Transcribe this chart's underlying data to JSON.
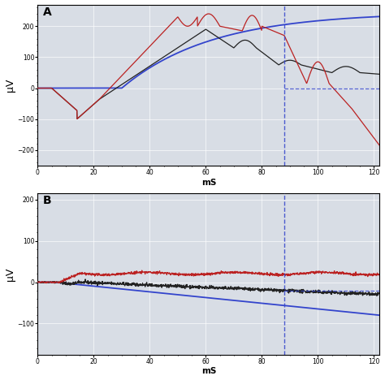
{
  "panel_A": {
    "label": "A",
    "xlim": [
      0,
      122
    ],
    "ylim": [
      -250,
      270
    ],
    "yticks": [
      -200.0,
      -100.0,
      0.0,
      100.0,
      200.0
    ],
    "xticks": [
      0.0,
      20.0,
      40.0,
      60.0,
      80.0,
      100.0,
      120.0
    ],
    "xlabel": "mS",
    "ylabel": "μV",
    "vline_x": 88,
    "background": "#d8dde5"
  },
  "panel_B": {
    "label": "B",
    "xlim": [
      0,
      122
    ],
    "ylim": [
      -175,
      215
    ],
    "yticks": [
      -100.0,
      0.0,
      100.0,
      200.0
    ],
    "xticks": [
      0.0,
      20.0,
      40.0,
      60.0,
      80.0,
      100.0,
      120.0
    ],
    "xlabel": "mS",
    "ylabel": "μV",
    "vline_x": 88,
    "background": "#d8dde5"
  },
  "colors": {
    "blue": "#3344cc",
    "red": "#bb2222",
    "black": "#222222"
  }
}
